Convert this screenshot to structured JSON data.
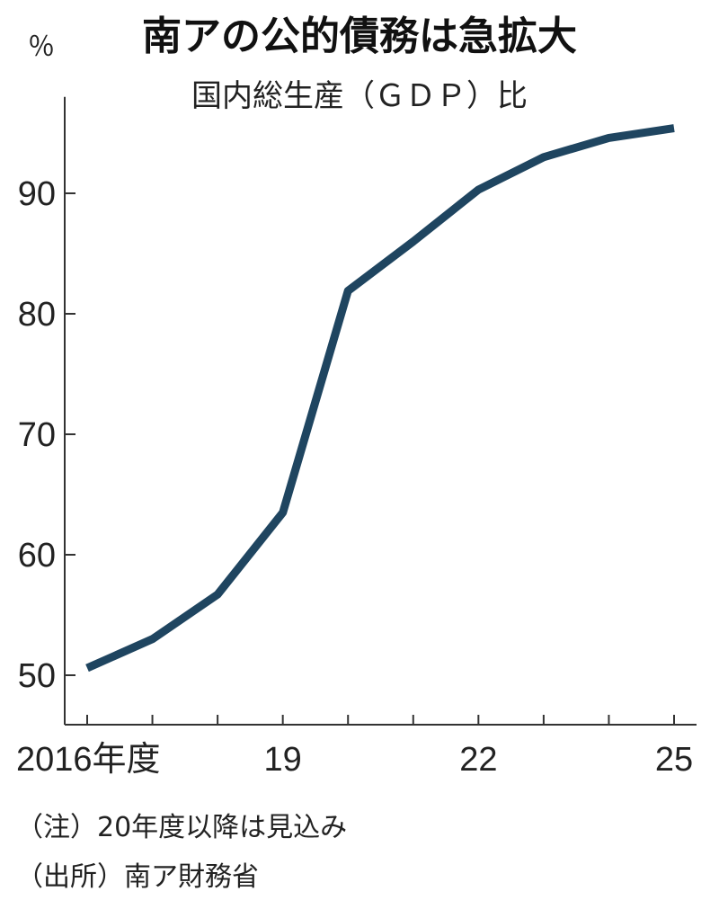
{
  "chart_data": {
    "type": "line",
    "title": "南アの公的債務は急拡大",
    "subtitle": "国内総生産（ＧＤＰ）比",
    "y_unit": "％",
    "x": [
      "2016",
      "2017",
      "2018",
      "2019",
      "2020",
      "2021",
      "2022",
      "2023",
      "2024",
      "2025"
    ],
    "series": [
      {
        "values": [
          50.6,
          53.0,
          56.7,
          63.5,
          81.9,
          86.0,
          90.3,
          93.0,
          94.6,
          95.4
        ]
      }
    ],
    "ylim": [
      46,
      98
    ],
    "yticks": [
      50,
      60,
      70,
      80,
      90
    ],
    "ytick_labels": [
      "50",
      "60",
      "70",
      "80",
      "90"
    ],
    "xtick_labels": [
      {
        "index": 0,
        "label": "2016年度"
      },
      {
        "index": 3,
        "label": "19"
      },
      {
        "index": 6,
        "label": "22"
      },
      {
        "index": 9,
        "label": "25"
      }
    ],
    "grid": false,
    "line_color": "#1f4560",
    "notes": [
      "（注）20年度以降は見込み",
      "（出所）南ア財務省"
    ]
  }
}
